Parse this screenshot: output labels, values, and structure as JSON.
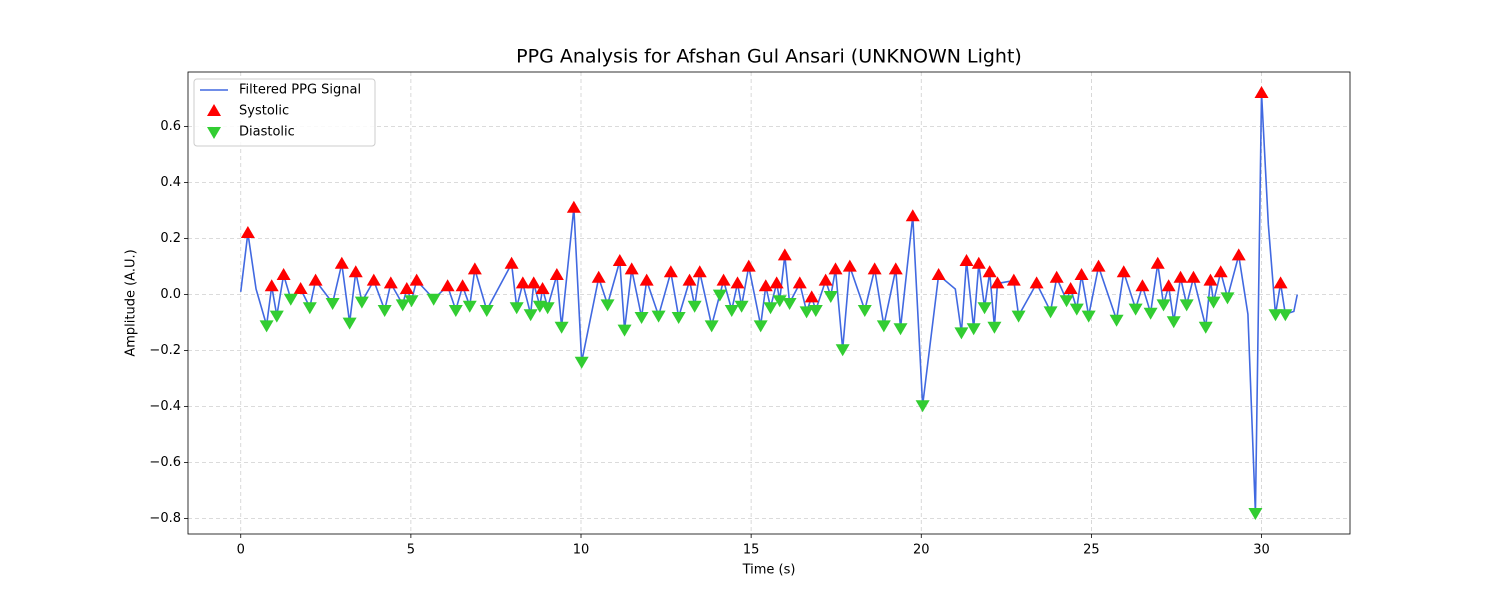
{
  "chart_data": {
    "type": "line",
    "title": "PPG Analysis for Afshan Gul Ansari (UNKNOWN Light)",
    "xlabel": "Time (s)",
    "ylabel": "Amplitude (A.U.)",
    "xlim": [
      -1.55,
      32.6
    ],
    "ylim": [
      -0.855,
      0.795
    ],
    "xticks": [
      0,
      5,
      10,
      15,
      20,
      25,
      30
    ],
    "yticks": [
      {
        "value": -0.8,
        "label": "−0.8"
      },
      {
        "value": -0.6,
        "label": "−0.6"
      },
      {
        "value": -0.4,
        "label": "−0.4"
      },
      {
        "value": -0.2,
        "label": "−0.2"
      },
      {
        "value": 0,
        "label": "0.0"
      },
      0.2,
      0.4,
      0.6
    ],
    "grid": true,
    "legend": "upper-left",
    "series": [
      {
        "name": "Filtered PPG Signal",
        "type": "line",
        "color": "#4169e1",
        "x": [
          0.0,
          0.21,
          0.45,
          0.76,
          0.91,
          1.06,
          1.26,
          1.47,
          1.76,
          2.03,
          2.2,
          2.7,
          2.97,
          3.2,
          3.38,
          3.56,
          3.91,
          4.23,
          4.41,
          4.76,
          4.88,
          5.02,
          5.17,
          5.67,
          6.08,
          6.32,
          6.52,
          6.73,
          6.88,
          7.23,
          7.96,
          8.11,
          8.29,
          8.52,
          8.61,
          8.79,
          8.87,
          9.02,
          9.29,
          9.43,
          9.79,
          10.02,
          10.52,
          10.78,
          11.14,
          11.28,
          11.49,
          11.78,
          11.93,
          12.28,
          12.64,
          12.87,
          13.19,
          13.34,
          13.49,
          13.84,
          14.08,
          14.19,
          14.43,
          14.6,
          14.72,
          14.93,
          15.28,
          15.43,
          15.57,
          15.75,
          15.84,
          15.99,
          16.13,
          16.43,
          16.63,
          16.78,
          16.9,
          17.19,
          17.34,
          17.48,
          17.69,
          17.9,
          18.34,
          18.63,
          18.9,
          19.25,
          19.39,
          19.75,
          20.04,
          20.51,
          21.0,
          21.18,
          21.33,
          21.54,
          21.69,
          21.86,
          22.01,
          22.15,
          22.24,
          22.72,
          22.86,
          23.39,
          23.8,
          23.98,
          24.27,
          24.39,
          24.57,
          24.71,
          24.92,
          25.21,
          25.74,
          25.95,
          26.3,
          26.5,
          26.74,
          26.95,
          27.12,
          27.27,
          27.42,
          27.62,
          27.8,
          28.0,
          28.36,
          28.5,
          28.59,
          28.8,
          29.0,
          29.33,
          29.6,
          29.82,
          30.0,
          30.2,
          30.41,
          30.56,
          30.7,
          30.95,
          31.05
        ],
        "values": [
          0.01,
          0.22,
          0.02,
          -0.11,
          0.03,
          -0.075,
          0.07,
          -0.015,
          0.02,
          -0.045,
          0.05,
          -0.03,
          0.11,
          -0.1,
          0.08,
          -0.025,
          0.05,
          -0.055,
          0.04,
          -0.035,
          0.02,
          -0.02,
          0.05,
          -0.015,
          0.03,
          -0.055,
          0.03,
          -0.04,
          0.09,
          -0.055,
          0.11,
          -0.045,
          0.04,
          -0.07,
          0.04,
          -0.04,
          0.02,
          -0.045,
          0.07,
          -0.115,
          0.31,
          -0.24,
          0.06,
          -0.035,
          0.12,
          -0.125,
          0.09,
          -0.08,
          0.05,
          -0.075,
          0.08,
          -0.08,
          0.05,
          -0.04,
          0.08,
          -0.11,
          0.0,
          0.05,
          -0.055,
          0.04,
          -0.04,
          0.1,
          -0.11,
          0.03,
          -0.045,
          0.04,
          -0.02,
          0.14,
          -0.03,
          0.04,
          -0.06,
          -0.01,
          -0.055,
          0.05,
          -0.005,
          0.09,
          -0.195,
          0.1,
          -0.055,
          0.09,
          -0.11,
          0.09,
          -0.12,
          0.28,
          -0.395,
          0.07,
          0.02,
          -0.135,
          0.12,
          -0.12,
          0.11,
          -0.045,
          0.08,
          -0.115,
          0.04,
          0.05,
          -0.075,
          0.04,
          -0.06,
          0.06,
          -0.02,
          0.02,
          -0.05,
          0.07,
          -0.075,
          0.1,
          -0.09,
          0.08,
          -0.05,
          0.03,
          -0.065,
          0.11,
          -0.035,
          0.03,
          -0.095,
          0.06,
          -0.035,
          0.06,
          -0.115,
          0.05,
          -0.025,
          0.08,
          -0.01,
          0.14,
          -0.07,
          -0.78,
          0.72,
          0.25,
          -0.07,
          0.04,
          -0.07,
          -0.06,
          0.0
        ]
      },
      {
        "name": "Systolic",
        "type": "scatter",
        "marker": "triangle-up",
        "color": "#ff0000",
        "x": [
          0.21,
          0.91,
          1.26,
          1.76,
          2.2,
          2.97,
          3.38,
          3.91,
          4.41,
          4.88,
          5.17,
          6.08,
          6.52,
          6.88,
          7.96,
          8.29,
          8.61,
          8.87,
          9.29,
          9.79,
          10.52,
          11.14,
          11.49,
          11.93,
          12.64,
          13.19,
          13.49,
          14.19,
          14.6,
          14.93,
          15.43,
          15.75,
          15.99,
          16.43,
          16.78,
          17.19,
          17.48,
          17.9,
          18.63,
          19.25,
          19.75,
          20.51,
          21.33,
          21.69,
          22.01,
          22.24,
          22.72,
          23.39,
          23.98,
          24.39,
          24.71,
          25.21,
          25.95,
          26.5,
          26.95,
          27.27,
          27.62,
          28.0,
          28.5,
          28.8,
          29.33,
          30.0,
          30.56
        ],
        "values": [
          0.22,
          0.03,
          0.07,
          0.02,
          0.05,
          0.11,
          0.08,
          0.05,
          0.04,
          0.02,
          0.05,
          0.03,
          0.03,
          0.09,
          0.11,
          0.04,
          0.04,
          0.02,
          0.07,
          0.31,
          0.06,
          0.12,
          0.09,
          0.05,
          0.08,
          0.05,
          0.08,
          0.05,
          0.04,
          0.1,
          0.03,
          0.04,
          0.14,
          0.04,
          -0.01,
          0.05,
          0.09,
          0.1,
          0.09,
          0.09,
          0.28,
          0.07,
          0.12,
          0.11,
          0.08,
          0.04,
          0.05,
          0.04,
          0.06,
          0.02,
          0.07,
          0.1,
          0.08,
          0.03,
          0.11,
          0.03,
          0.06,
          0.06,
          0.05,
          0.08,
          0.14,
          0.72,
          0.04
        ]
      },
      {
        "name": "Diastolic",
        "type": "scatter",
        "marker": "triangle-down",
        "color": "#32cd32",
        "x": [
          0.76,
          1.06,
          1.47,
          2.03,
          2.7,
          3.2,
          3.56,
          4.23,
          4.76,
          5.02,
          5.67,
          6.32,
          6.73,
          7.23,
          8.11,
          8.52,
          8.79,
          9.02,
          9.43,
          10.02,
          10.78,
          11.28,
          11.78,
          12.28,
          12.87,
          13.34,
          13.84,
          14.08,
          14.43,
          14.72,
          15.28,
          15.57,
          15.84,
          16.13,
          16.63,
          16.9,
          17.34,
          17.69,
          18.34,
          18.9,
          19.39,
          20.04,
          21.18,
          21.54,
          21.86,
          22.15,
          22.86,
          23.8,
          24.27,
          24.57,
          24.92,
          25.74,
          26.3,
          26.74,
          27.12,
          27.42,
          27.8,
          28.36,
          28.59,
          29.0,
          29.82,
          30.41,
          30.7
        ],
        "values": [
          -0.11,
          -0.075,
          -0.015,
          -0.045,
          -0.03,
          -0.1,
          -0.025,
          -0.055,
          -0.035,
          -0.02,
          -0.015,
          -0.055,
          -0.04,
          -0.055,
          -0.045,
          -0.07,
          -0.04,
          -0.045,
          -0.115,
          -0.24,
          -0.035,
          -0.125,
          -0.08,
          -0.075,
          -0.08,
          -0.04,
          -0.11,
          0.0,
          -0.055,
          -0.04,
          -0.11,
          -0.045,
          -0.02,
          -0.03,
          -0.06,
          -0.055,
          -0.005,
          -0.195,
          -0.055,
          -0.11,
          -0.12,
          -0.395,
          -0.135,
          -0.12,
          -0.045,
          -0.115,
          -0.075,
          -0.06,
          -0.02,
          -0.05,
          -0.075,
          -0.09,
          -0.05,
          -0.065,
          -0.035,
          -0.095,
          -0.035,
          -0.115,
          -0.025,
          -0.01,
          -0.78,
          -0.07,
          -0.07
        ]
      }
    ]
  }
}
